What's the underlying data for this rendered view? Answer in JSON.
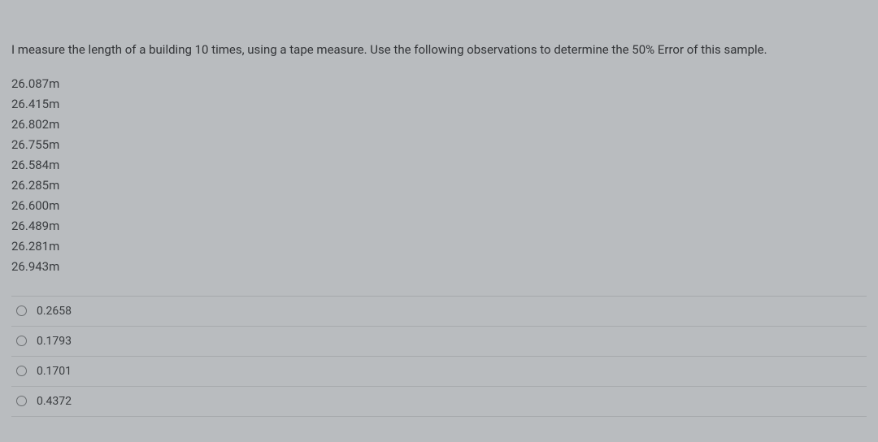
{
  "question": {
    "prompt": "I measure the length of a building 10 times, using a tape measure. Use the following observations to determine the 50% Error of this sample.",
    "measurements": [
      "26.087m",
      "26.415m",
      "26.802m",
      "26.755m",
      "26.584m",
      "26.285m",
      "26.600m",
      "26.489m",
      "26.281m",
      "26.943m"
    ],
    "options": [
      {
        "label": "0.2658"
      },
      {
        "label": "0.1793"
      },
      {
        "label": "0.1701"
      },
      {
        "label": "0.4372"
      }
    ]
  },
  "style": {
    "background_color": "#b9bcbf",
    "text_color": "#3a3d40",
    "divider_color": "#a6a9ac",
    "radio_border": "#6b6e71",
    "font_size_prompt": 15,
    "font_size_measure": 15,
    "font_size_option": 14
  }
}
